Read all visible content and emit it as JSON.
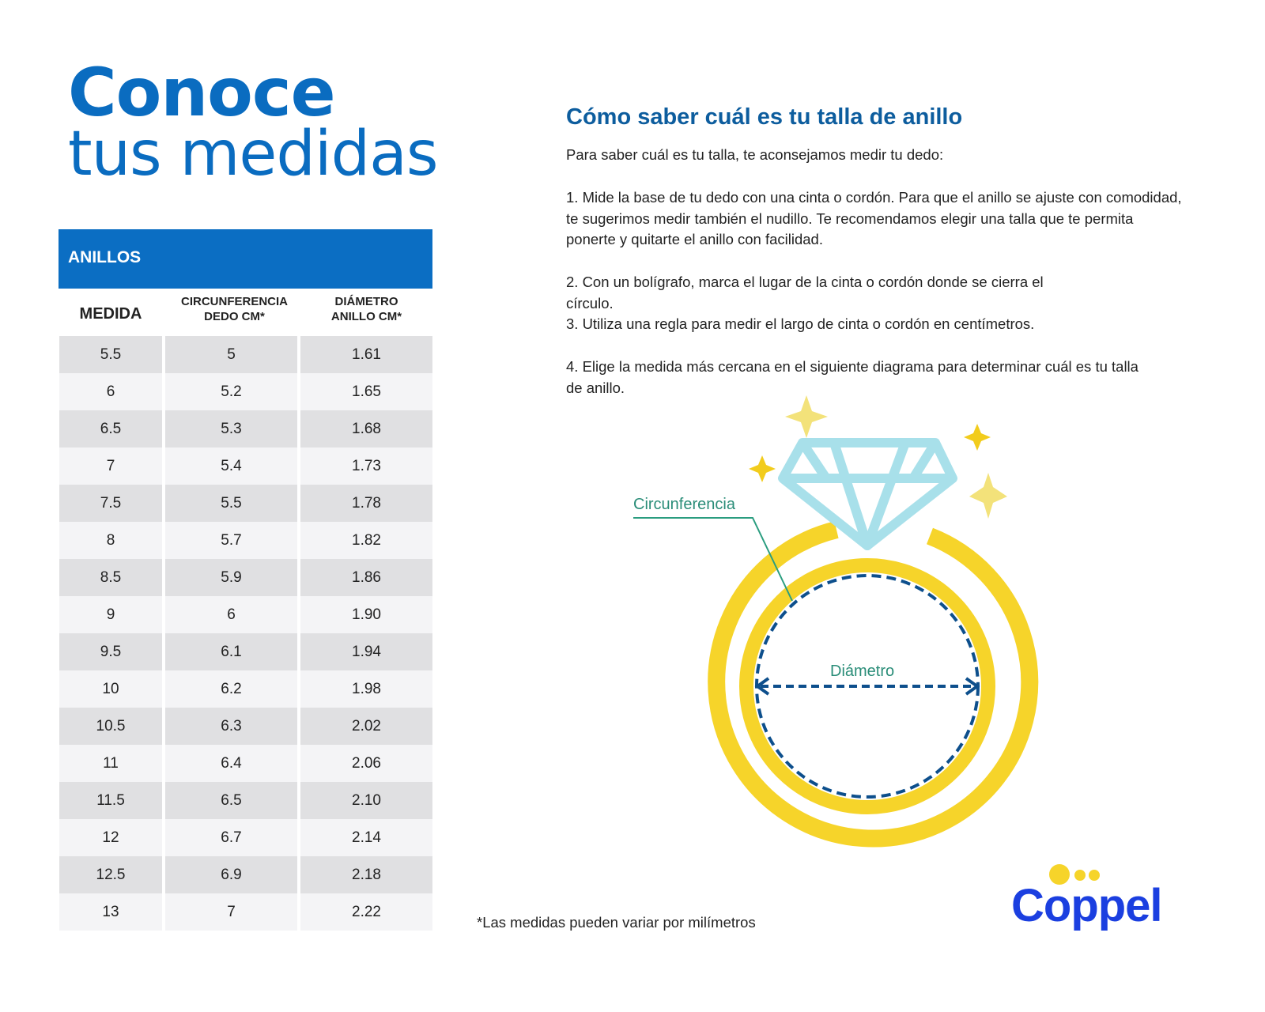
{
  "heading": {
    "line1": "Conoce",
    "line2": "tus medidas"
  },
  "table": {
    "title": "ANILLOS",
    "columns": [
      "MEDIDA",
      "CIRCUNFERENCIA DEDO CM*",
      "DIÁMETRO ANILLO CM*"
    ],
    "col_lines": {
      "c2a": "CIRCUNFERENCIA",
      "c2b": "DEDO CM*",
      "c3a": "DIÁMETRO",
      "c3b": "ANILLO CM*"
    },
    "rows": [
      [
        "5.5",
        "5",
        "1.61"
      ],
      [
        "6",
        "5.2",
        "1.65"
      ],
      [
        "6.5",
        "5.3",
        "1.68"
      ],
      [
        "7",
        "5.4",
        "1.73"
      ],
      [
        "7.5",
        "5.5",
        "1.78"
      ],
      [
        "8",
        "5.7",
        "1.82"
      ],
      [
        "8.5",
        "5.9",
        "1.86"
      ],
      [
        "9",
        "6",
        "1.90"
      ],
      [
        "9.5",
        "6.1",
        "1.94"
      ],
      [
        "10",
        "6.2",
        "1.98"
      ],
      [
        "10.5",
        "6.3",
        "2.02"
      ],
      [
        "11",
        "6.4",
        "2.06"
      ],
      [
        "11.5",
        "6.5",
        "2.10"
      ],
      [
        "12",
        "6.7",
        "2.14"
      ],
      [
        "12.5",
        "6.9",
        "2.18"
      ],
      [
        "13",
        "7",
        "2.22"
      ]
    ]
  },
  "instructions": {
    "title": "Cómo saber cuál es tu talla de anillo",
    "intro": "Para saber cuál es tu talla, te aconsejamos medir tu dedo:",
    "step1": "1. Mide la base de tu dedo con una cinta o cordón. Para que el anillo se ajuste con comodidad, te sugerimos medir también el nudillo. Te recomendamos elegir una talla que te permita ponerte y quitarte el anillo con facilidad.",
    "step2": "2. Con un bolígrafo, marca el lugar de la cinta o cordón donde se cierra el círculo.",
    "step3": "3. Utiliza una regla para medir el largo de cinta o cordón en centímetros.",
    "step4": "4. Elige la medida más cercana en el siguiente diagrama para determinar cuál es tu talla de anillo."
  },
  "diagram": {
    "label_circ": "Circunferencia",
    "label_diam": "Diámetro",
    "colors": {
      "ring": "#f6d42a",
      "diamond": "#a8e0ea",
      "dash": "#0d4f8c",
      "leader": "#2a9d7f"
    }
  },
  "footnote": "*Las medidas pueden variar por milímetros",
  "logo": {
    "text": "Coppel",
    "color": "#1b3fe0",
    "dots": "#f6d42a"
  }
}
